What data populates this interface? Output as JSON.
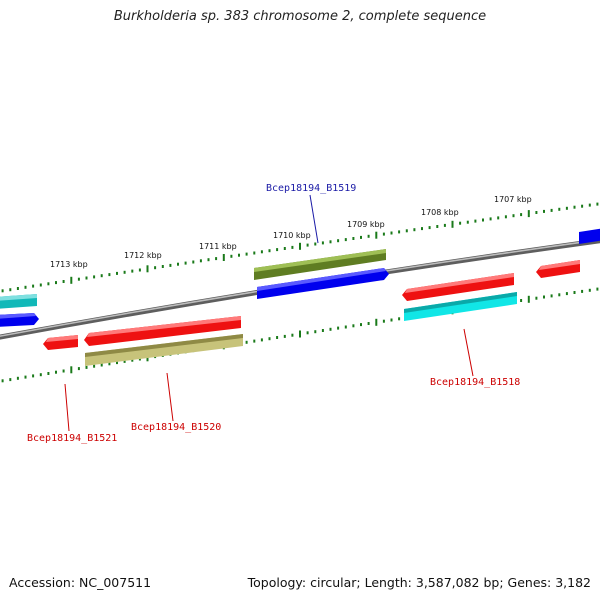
{
  "title": "Burkholderia sp. 383 chromosome 2, complete sequence",
  "footer": {
    "accession": "Accession: NC_007511",
    "summary": "Topology: circular; Length: 3,587,082 bp; Genes: 3,182"
  },
  "ticks": [
    {
      "id": "1713",
      "label": "1713 kbp"
    },
    {
      "id": "1712",
      "label": "1712 kbp"
    },
    {
      "id": "1711",
      "label": "1711 kbp"
    },
    {
      "id": "1710",
      "label": "1710 kbp"
    },
    {
      "id": "1709",
      "label": "1709 kbp"
    },
    {
      "id": "1708",
      "label": "1708 kbp"
    },
    {
      "id": "1707",
      "label": "1707 kbp"
    }
  ],
  "gene_labels": [
    {
      "id": "b1519",
      "label": "Bcep18194_B1519",
      "color": "#1a1aa6"
    },
    {
      "id": "b1518",
      "label": "Bcep18194_B1518",
      "color": "#cc0000"
    },
    {
      "id": "b1520",
      "label": "Bcep18194_B1520",
      "color": "#cc0000"
    },
    {
      "id": "b1521",
      "label": "Bcep18194_B1521",
      "color": "#cc0000"
    }
  ],
  "colors": {
    "backbone": "#7f7f7f",
    "tick": "#1a7a1a",
    "red": "#ee1111",
    "blue": "#0000ee",
    "cyan": "#11e6e6",
    "teal": "#11b8b8",
    "olive": "#6b8a2a",
    "khaki": "#c7c37a"
  }
}
